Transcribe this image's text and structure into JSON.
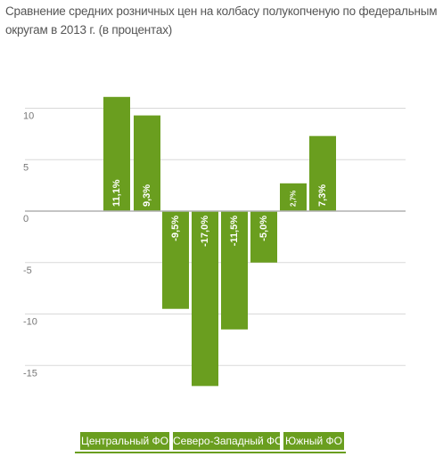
{
  "title": "Сравнение средних розничных цен на колбасу полукопченую по федеральным округам в 2013 г. (в процентах)",
  "colors": {
    "bar": "#6a9e1f",
    "grid": "#d9d9d9",
    "zero_line": "#b0b0b0"
  },
  "chart_data": {
    "type": "bar",
    "title": "Сравнение средних розничных цен на колбасу полукопченую по федеральным округам в 2013 г. (в процентах)",
    "ylim": [
      -17,
      11
    ],
    "yticks": [
      10,
      5,
      0,
      -5,
      -10,
      -15
    ],
    "grid": true,
    "values": [
      11.1,
      9.3,
      -9.5,
      -17.0,
      -11.5,
      -5.0,
      2.7,
      7.3
    ],
    "labels": [
      "11,1%",
      "9,3%",
      "-9,5%",
      "-17,0%",
      "-11,5%",
      "-5,0%",
      "2,7%",
      "7,3%"
    ],
    "groups": [
      {
        "name": "Центральный ФО",
        "bars": [
          0,
          1
        ]
      },
      {
        "name": "Северо-Западный ФО",
        "bars": [
          2,
          3,
          4,
          5
        ]
      },
      {
        "name": "Южный ФО",
        "bars": [
          6,
          7
        ]
      }
    ]
  }
}
